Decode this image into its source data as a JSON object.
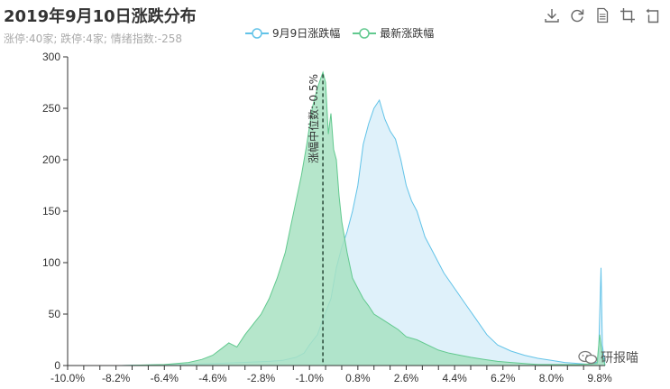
{
  "header": {
    "title": "2019年9月10日涨跌分布",
    "subtitle": "涨停:40家; 跌停:4家; 情绪指数:-258"
  },
  "toolbox": {
    "icons": [
      "download-icon",
      "refresh-icon",
      "data-view-icon",
      "zoom-icon",
      "restore-icon"
    ]
  },
  "watermark": {
    "text": "研报喵",
    "icon": "wechat-icon"
  },
  "colors": {
    "series1_line": "#62c3e8",
    "series1_fill": "#dcf0fa",
    "series2_line": "#62c98f",
    "series2_fill": "#a8e2c2",
    "axis": "#333333",
    "median_line": "#2f4f3f"
  },
  "chart_data": {
    "type": "area",
    "xlim": [
      -10.0,
      10.0
    ],
    "ylim": [
      0,
      300
    ],
    "x_ticks": [
      "-10.0%",
      "-8.2%",
      "-6.4%",
      "-4.6%",
      "-2.8%",
      "-1.0%",
      "0.8%",
      "2.6%",
      "4.4%",
      "6.2%",
      "8.0%",
      "9.8%"
    ],
    "x_tick_values": [
      -10.0,
      -8.2,
      -6.4,
      -4.6,
      -2.8,
      -1.0,
      0.8,
      2.6,
      4.4,
      6.2,
      8.0,
      9.8
    ],
    "y_ticks": [
      "0",
      "50",
      "100",
      "150",
      "200",
      "250",
      "300"
    ],
    "y_tick_values": [
      0,
      50,
      100,
      150,
      200,
      250,
      300
    ],
    "median": {
      "x": -0.5,
      "label": "涨幅中位数:-0.5%"
    },
    "series": [
      {
        "name": "9月9日涨跌幅",
        "points": [
          [
            -10,
            0
          ],
          [
            -8,
            0
          ],
          [
            -6,
            1
          ],
          [
            -4.5,
            2
          ],
          [
            -3.5,
            3
          ],
          [
            -2.5,
            4
          ],
          [
            -2,
            5
          ],
          [
            -1.5,
            8
          ],
          [
            -1.2,
            12
          ],
          [
            -1,
            20
          ],
          [
            -0.7,
            30
          ],
          [
            -0.5,
            45
          ],
          [
            -0.2,
            65
          ],
          [
            0,
            95
          ],
          [
            0.2,
            115
          ],
          [
            0.4,
            130
          ],
          [
            0.6,
            150
          ],
          [
            0.8,
            175
          ],
          [
            1,
            215
          ],
          [
            1.2,
            235
          ],
          [
            1.4,
            250
          ],
          [
            1.6,
            258
          ],
          [
            1.8,
            240
          ],
          [
            2,
            228
          ],
          [
            2.2,
            220
          ],
          [
            2.4,
            200
          ],
          [
            2.6,
            175
          ],
          [
            2.8,
            160
          ],
          [
            3,
            150
          ],
          [
            3.3,
            125
          ],
          [
            3.6,
            110
          ],
          [
            4,
            90
          ],
          [
            4.4,
            75
          ],
          [
            4.8,
            60
          ],
          [
            5.2,
            45
          ],
          [
            5.6,
            30
          ],
          [
            6,
            20
          ],
          [
            6.5,
            14
          ],
          [
            7,
            10
          ],
          [
            7.5,
            7
          ],
          [
            8,
            5
          ],
          [
            8.5,
            3
          ],
          [
            9,
            2
          ],
          [
            9.5,
            1
          ],
          [
            9.75,
            4
          ],
          [
            9.85,
            95
          ],
          [
            9.9,
            20
          ],
          [
            10,
            0
          ]
        ]
      },
      {
        "name": "最新涨跌幅",
        "points": [
          [
            -10,
            0
          ],
          [
            -8,
            0
          ],
          [
            -6.4,
            1
          ],
          [
            -5.5,
            3
          ],
          [
            -5,
            6
          ],
          [
            -4.6,
            10
          ],
          [
            -4.3,
            16
          ],
          [
            -4,
            22
          ],
          [
            -3.7,
            18
          ],
          [
            -3.4,
            30
          ],
          [
            -3.1,
            40
          ],
          [
            -2.8,
            50
          ],
          [
            -2.5,
            65
          ],
          [
            -2.2,
            85
          ],
          [
            -1.9,
            110
          ],
          [
            -1.7,
            135
          ],
          [
            -1.5,
            160
          ],
          [
            -1.3,
            185
          ],
          [
            -1.1,
            215
          ],
          [
            -0.9,
            250
          ],
          [
            -0.7,
            270
          ],
          [
            -0.5,
            285
          ],
          [
            -0.4,
            275
          ],
          [
            -0.3,
            225
          ],
          [
            -0.2,
            245
          ],
          [
            -0.1,
            210
          ],
          [
            0,
            200
          ],
          [
            0.1,
            165
          ],
          [
            0.2,
            140
          ],
          [
            0.4,
            110
          ],
          [
            0.6,
            85
          ],
          [
            0.8,
            75
          ],
          [
            1,
            65
          ],
          [
            1.2,
            58
          ],
          [
            1.4,
            50
          ],
          [
            1.7,
            45
          ],
          [
            2,
            40
          ],
          [
            2.3,
            35
          ],
          [
            2.6,
            28
          ],
          [
            3,
            25
          ],
          [
            3.4,
            20
          ],
          [
            3.8,
            15
          ],
          [
            4.2,
            12
          ],
          [
            4.6,
            10
          ],
          [
            5,
            8
          ],
          [
            5.5,
            6
          ],
          [
            6,
            4
          ],
          [
            6.5,
            3
          ],
          [
            7,
            2
          ],
          [
            7.5,
            1
          ],
          [
            8,
            1
          ],
          [
            9,
            1
          ],
          [
            9.7,
            2
          ],
          [
            9.8,
            30
          ],
          [
            9.9,
            10
          ],
          [
            10,
            0
          ]
        ]
      }
    ]
  }
}
